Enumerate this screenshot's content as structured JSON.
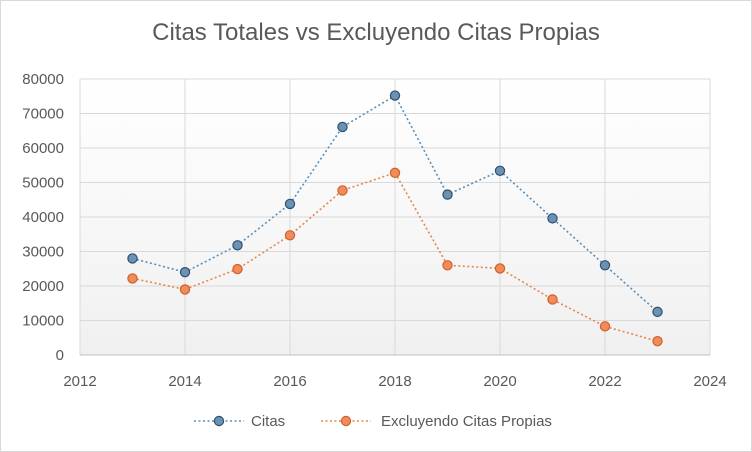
{
  "chart_data": {
    "type": "scatter",
    "title": "Citas Totales vs Excluyendo Citas Propias",
    "xlabel": "",
    "ylabel": "",
    "xlim": [
      2012,
      2024
    ],
    "ylim": [
      0,
      80000
    ],
    "x_ticks": [
      2012,
      2014,
      2016,
      2018,
      2020,
      2022,
      2024
    ],
    "y_ticks": [
      0,
      10000,
      20000,
      30000,
      40000,
      50000,
      60000,
      70000,
      80000
    ],
    "grid": true,
    "legend_position": "bottom",
    "series": [
      {
        "name": "Citas",
        "color": "#5b8db8",
        "marker_color": "#6a93b3",
        "line_style": "dotted",
        "x": [
          2013,
          2014,
          2015,
          2016,
          2017,
          2018,
          2019,
          2020,
          2021,
          2022,
          2023
        ],
        "y": [
          28000,
          24000,
          31800,
          43800,
          66100,
          75200,
          46500,
          53400,
          39600,
          26000,
          12500
        ]
      },
      {
        "name": "Excluyendo Citas Propias",
        "color": "#e8844d",
        "marker_color": "#f08c5a",
        "line_style": "dotted",
        "x": [
          2013,
          2014,
          2015,
          2016,
          2017,
          2018,
          2019,
          2020,
          2021,
          2022,
          2023
        ],
        "y": [
          22200,
          19000,
          24900,
          34700,
          47700,
          52800,
          26000,
          25100,
          16100,
          8300,
          4000
        ]
      }
    ]
  }
}
